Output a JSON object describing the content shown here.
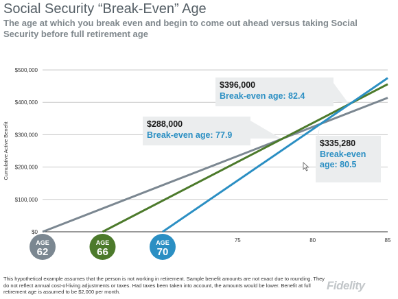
{
  "title": "Social Security “Break-Even” Age",
  "subtitle": "The age at which you break even and begin to come out ahead versus taking Social Security before full retirement age",
  "footnote": "This hypothetical example assumes that the person is not working in retirement. Sample benefit amounts are not exact due to rounding. They do not reflect annual cost-of-living adjustments or taxes. Had taxes been taken into account, the amounts would be lower. Benefit at full retirement age is assumed to be $2,000 per month.",
  "logo": "Fidelity",
  "colors": {
    "age62": "#7b8791",
    "age66": "#4c7a2b",
    "age70": "#2b8fc3",
    "callout_bg": "#ebedee",
    "grid": "#c8c8c8"
  },
  "chart_data": {
    "type": "line",
    "ylabel": "Cumulative Active Benefit",
    "xlim": [
      62,
      85
    ],
    "ylim": [
      0,
      500000
    ],
    "y_ticks": [
      {
        "value": 0,
        "label": "$0"
      },
      {
        "value": 100000,
        "label": "$100,000"
      },
      {
        "value": 200000,
        "label": "$200,000"
      },
      {
        "value": 300000,
        "label": "$300,000"
      },
      {
        "value": 400000,
        "label": "$400,000"
      },
      {
        "value": 500000,
        "label": "$500,000"
      }
    ],
    "x_ticks": [
      {
        "value": 75,
        "label": "75"
      },
      {
        "value": 80,
        "label": "80"
      },
      {
        "value": 85,
        "label": "85"
      }
    ],
    "age_badges": [
      {
        "top": "AGE",
        "bottom": "62",
        "x": 62,
        "color_key": "age62"
      },
      {
        "top": "AGE",
        "bottom": "66",
        "x": 66,
        "color_key": "age66"
      },
      {
        "top": "AGE",
        "bottom": "70",
        "x": 70,
        "color_key": "age70"
      }
    ],
    "series": [
      {
        "color_key": "age62",
        "x": [
          62,
          85
        ],
        "y": [
          0,
          414000
        ]
      },
      {
        "color_key": "age66",
        "x": [
          66,
          85
        ],
        "y": [
          0,
          456000
        ]
      },
      {
        "color_key": "age70",
        "x": [
          70,
          85
        ],
        "y": [
          0,
          475000
        ]
      }
    ],
    "annotations": [
      {
        "amount": "$288,000",
        "lines": [
          "Break-even age: 77.9"
        ],
        "point": [
          77.9,
          288000
        ]
      },
      {
        "amount": "$396,000",
        "lines": [
          "Break-even age: 82.4"
        ],
        "point": [
          82.4,
          396000
        ]
      },
      {
        "amount": "$335,280",
        "lines": [
          "Break-even",
          "age: 80.5"
        ],
        "point": [
          80.5,
          335280
        ]
      }
    ]
  }
}
